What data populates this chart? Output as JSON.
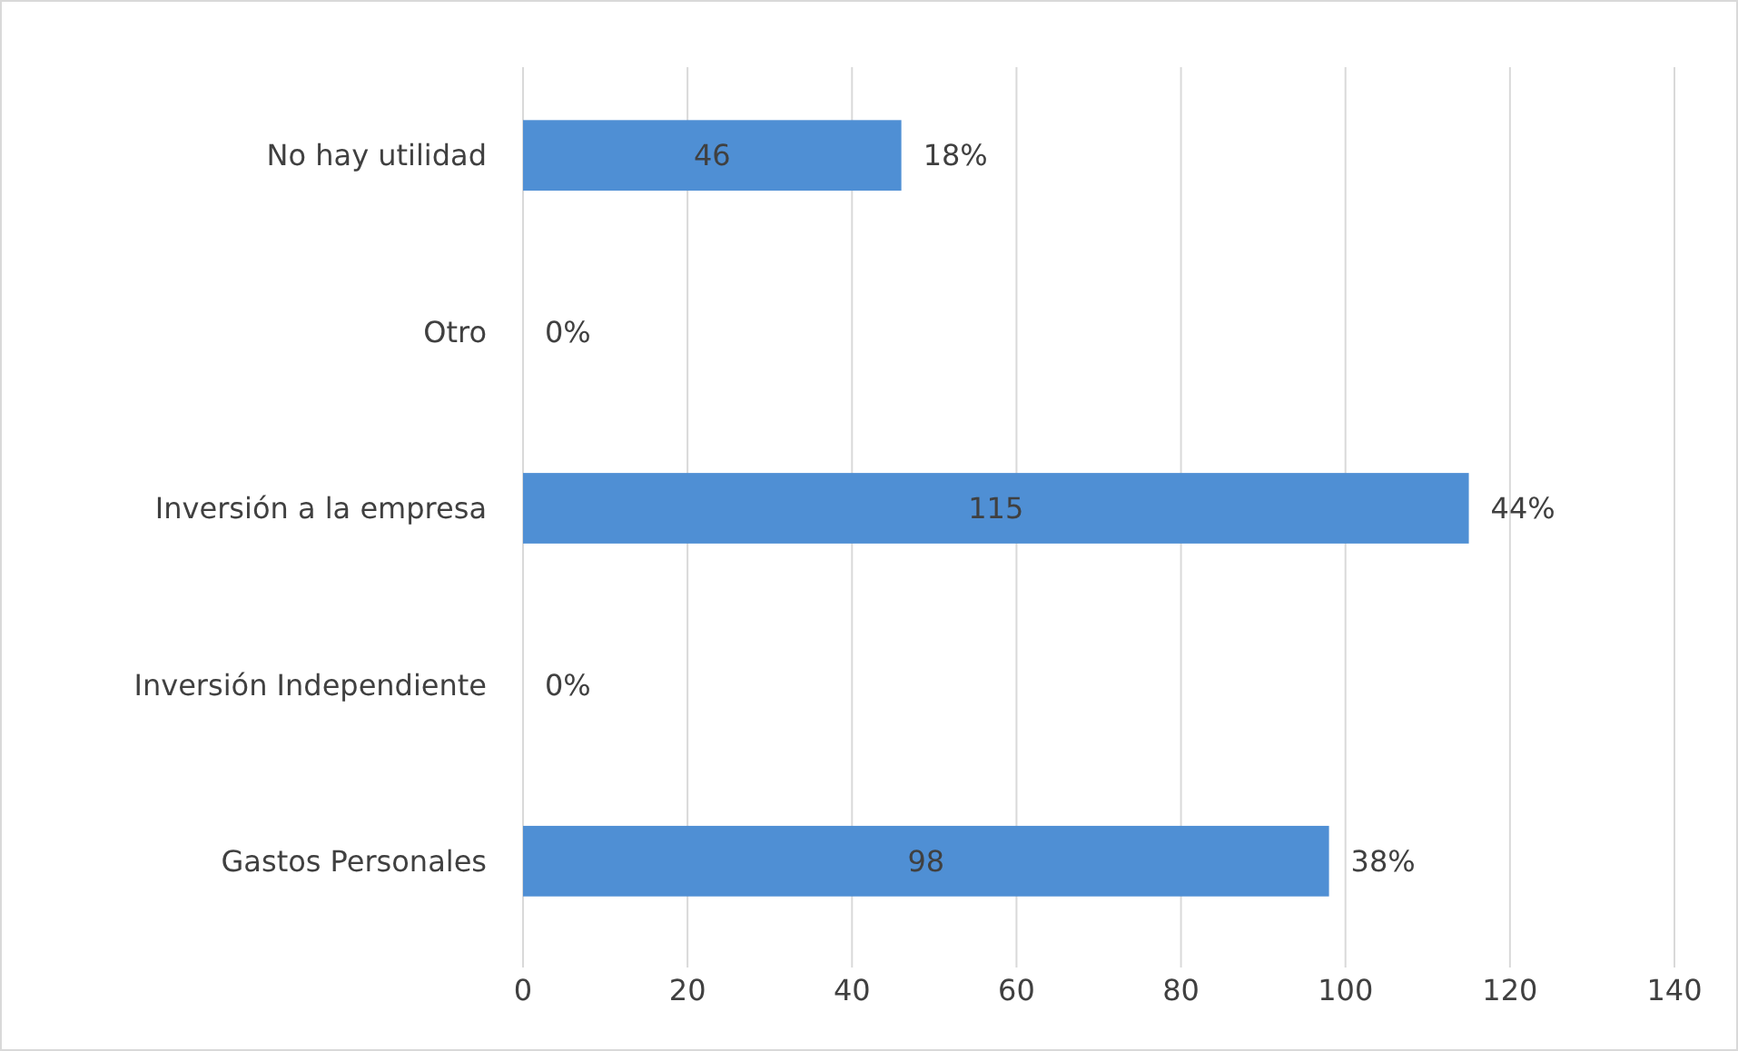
{
  "chart_data": {
    "type": "bar",
    "orientation": "horizontal",
    "categories": [
      "No hay utilidad",
      "Otro",
      "Inversión a la empresa",
      "Inversión Independiente",
      "Gastos Personales"
    ],
    "values": [
      46,
      0,
      115,
      0,
      98
    ],
    "color": "#4f8fd4",
    "value_labels": [
      "46",
      null,
      "115",
      null,
      "98"
    ],
    "xlim": [
      0,
      140
    ],
    "xticks": [
      0,
      20,
      40,
      60,
      80,
      100,
      120,
      140
    ],
    "grid": "x",
    "annotations": [
      {
        "text": "18%",
        "x": 46,
        "y": "No hay utilidad"
      },
      {
        "text": "0%",
        "x": 0,
        "y": "Otro"
      },
      {
        "text": "44%",
        "x": 115,
        "y": "Inversión a la empresa"
      },
      {
        "text": "0%",
        "x": 0,
        "y": "Inversión Independiente"
      },
      {
        "text": "38%",
        "x": 98,
        "y": "Gastos Personales"
      }
    ]
  }
}
